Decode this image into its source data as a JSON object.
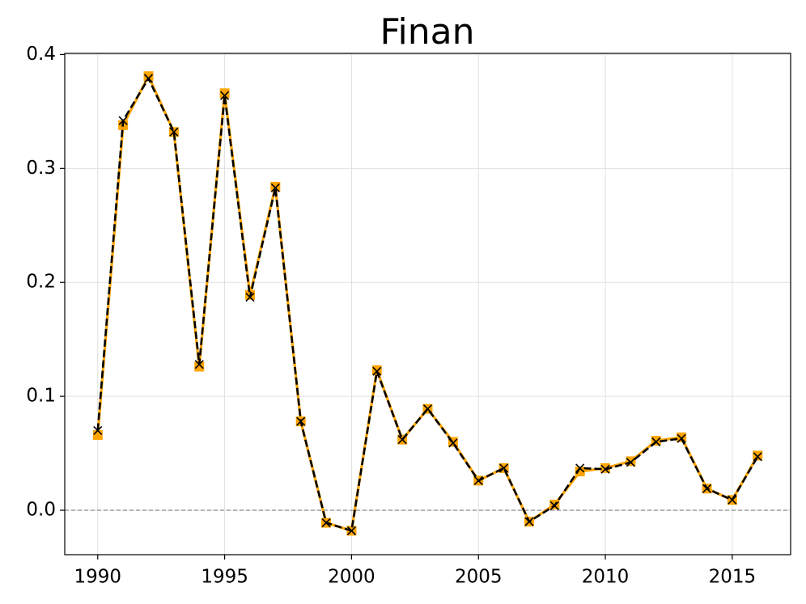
{
  "chart_data": {
    "type": "line",
    "title": "Finan",
    "x": [
      1990,
      1991,
      1992,
      1993,
      1994,
      1995,
      1996,
      1997,
      1998,
      1999,
      2000,
      2001,
      2002,
      2003,
      2004,
      2005,
      2006,
      2007,
      2008,
      2009,
      2010,
      2011,
      2012,
      2013,
      2014,
      2015,
      2016
    ],
    "series": [
      {
        "color": "#ffa500",
        "marker": "square",
        "linestyle": "solid",
        "values": [
          0.066,
          0.338,
          0.381,
          0.332,
          0.126,
          0.366,
          0.189,
          0.284,
          0.078,
          -0.011,
          -0.018,
          0.123,
          0.062,
          0.089,
          0.06,
          0.026,
          0.037,
          -0.01,
          0.005,
          0.034,
          0.037,
          0.043,
          0.061,
          0.064,
          0.019,
          0.009,
          0.048
        ]
      },
      {
        "color": "#000000",
        "marker": "x",
        "linestyle": "dashed",
        "values": [
          0.07,
          0.342,
          0.379,
          0.332,
          0.128,
          0.364,
          0.187,
          0.283,
          0.078,
          -0.011,
          -0.018,
          0.122,
          0.062,
          0.089,
          0.059,
          0.026,
          0.037,
          -0.01,
          0.004,
          0.037,
          0.036,
          0.042,
          0.06,
          0.063,
          0.019,
          0.009,
          0.047
        ]
      }
    ],
    "xlim": [
      1988.7,
      2017.3
    ],
    "xticks": [
      1990,
      1995,
      2000,
      2005,
      2010,
      2015
    ],
    "ylim": [
      -0.039,
      0.401
    ],
    "yticks": [
      0.0,
      0.1,
      0.2,
      0.3,
      0.4
    ],
    "hlines": [
      0
    ],
    "grid": true
  }
}
